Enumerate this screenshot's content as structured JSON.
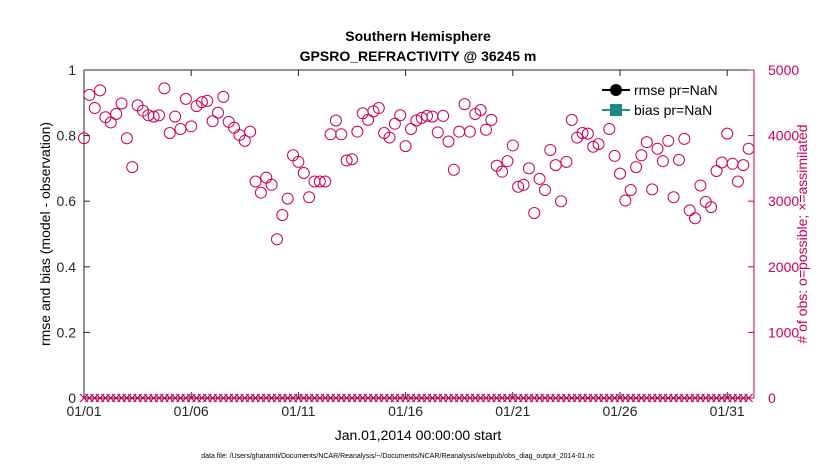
{
  "chart_data": {
    "type": "scatter",
    "title": "Southern Hemisphere",
    "subtitle": "GPSRO_REFRACTIVITY @ 36245 m",
    "xlabel": "Jan.01,2014 00:00:00 start",
    "ylabel_left": "rmse and bias (model - observation)",
    "ylabel_right": "# of obs: o=possible; ×=assimilated",
    "footnote": "data file: /Users/gharamti/Documents/NCAR/Reanalysis/~/Documents/NCAR/Reanalysis/webpub/obs_diag_output_2014-01.nc",
    "xlim": [
      0,
      31.25
    ],
    "ylim_left": [
      0,
      1
    ],
    "ylim_right": [
      0,
      5000
    ],
    "x_ticks": [
      0,
      5,
      10,
      15,
      20,
      25,
      30
    ],
    "x_tick_labels": [
      "01/01",
      "01/06",
      "01/11",
      "01/16",
      "01/21",
      "01/26",
      "01/31"
    ],
    "y_left_ticks": [
      0,
      0.2,
      0.4,
      0.6,
      0.8,
      1
    ],
    "y_left_tick_labels": [
      "0",
      "0.2",
      "0.4",
      "0.6",
      "0.8",
      "1"
    ],
    "y_right_ticks": [
      0,
      1000,
      2000,
      3000,
      4000,
      5000
    ],
    "y_right_tick_labels": [
      "0",
      "1000",
      "2000",
      "3000",
      "4000",
      "5000"
    ],
    "grid": false,
    "legend_position": "top-right",
    "legend": [
      {
        "label": "rmse pr=NaN",
        "color": "#000000",
        "marker": "circle"
      },
      {
        "label": "bias pr=NaN",
        "color": "#1f8a8a",
        "marker": "square"
      }
    ],
    "colors": {
      "obs": "#cc0055",
      "axis_right": "#cc0055"
    },
    "series": [
      {
        "name": "# of obs possible",
        "marker": "o",
        "x": [
          0.0,
          0.25,
          0.5,
          0.75,
          1.0,
          1.25,
          1.5,
          1.75,
          2.0,
          2.25,
          2.5,
          2.75,
          3.0,
          3.25,
          3.5,
          3.75,
          4.0,
          4.25,
          4.5,
          4.75,
          5.0,
          5.25,
          5.5,
          5.75,
          6.0,
          6.25,
          6.5,
          6.75,
          7.0,
          7.25,
          7.5,
          7.75,
          8.0,
          8.25,
          8.5,
          8.75,
          9.0,
          9.25,
          9.5,
          9.75,
          10.0,
          10.25,
          10.5,
          10.75,
          11.0,
          11.25,
          11.5,
          11.75,
          12.0,
          12.25,
          12.5,
          12.75,
          13.0,
          13.25,
          13.5,
          13.75,
          14.0,
          14.25,
          14.5,
          14.75,
          15.0,
          15.25,
          15.5,
          15.75,
          16.0,
          16.25,
          16.5,
          16.75,
          17.0,
          17.25,
          17.5,
          17.75,
          18.0,
          18.25,
          18.5,
          18.75,
          19.0,
          19.25,
          19.5,
          19.75,
          20.0,
          20.25,
          20.5,
          20.75,
          21.0,
          21.25,
          21.5,
          21.75,
          22.0,
          22.25,
          22.5,
          22.75,
          23.0,
          23.25,
          23.5,
          23.75,
          24.0,
          24.25,
          24.5,
          24.75,
          25.0,
          25.25,
          25.5,
          25.75,
          26.0,
          26.25,
          26.5,
          26.75,
          27.0,
          27.25,
          27.5,
          27.75,
          28.0,
          28.25,
          28.5,
          28.75,
          29.0,
          29.25,
          29.5,
          29.75,
          30.0,
          30.25,
          30.5,
          30.75,
          31.0
        ],
        "y": [
          3960,
          4620,
          4420,
          4690,
          4280,
          4200,
          4330,
          4490,
          3960,
          3520,
          4460,
          4380,
          4310,
          4290,
          4310,
          4720,
          4040,
          4290,
          4100,
          4560,
          4140,
          4450,
          4510,
          4530,
          4220,
          4350,
          4590,
          4210,
          4120,
          4010,
          3920,
          4060,
          3300,
          3130,
          3360,
          3250,
          2420,
          2790,
          3040,
          3700,
          3600,
          3430,
          3060,
          3300,
          3300,
          3300,
          4020,
          4230,
          4020,
          3620,
          3640,
          4060,
          4340,
          4240,
          4370,
          4420,
          4040,
          3970,
          4180,
          4310,
          3840,
          4100,
          4230,
          4270,
          4300,
          4290,
          4050,
          4300,
          3910,
          3480,
          4060,
          4480,
          4060,
          4330,
          4390,
          4090,
          4240,
          3540,
          3450,
          3610,
          3850,
          3220,
          3250,
          3500,
          2820,
          3340,
          3170,
          3780,
          3550,
          3000,
          3600,
          4240,
          3970,
          4040,
          4030,
          3830,
          3870,
          4460,
          4100,
          3690,
          3420,
          3010,
          3170,
          3520,
          3700,
          3900,
          3180,
          3800,
          3610,
          3920,
          3060,
          3630,
          3950,
          2860,
          2740,
          3240,
          2990,
          2910,
          3460,
          3590,
          4030,
          3570,
          3300,
          3550,
          3800
        ]
      },
      {
        "name": "# of obs assimilated",
        "marker": "x",
        "x_range": [
          0,
          31
        ],
        "x_step": 0.25,
        "y_constant": 0
      }
    ]
  }
}
